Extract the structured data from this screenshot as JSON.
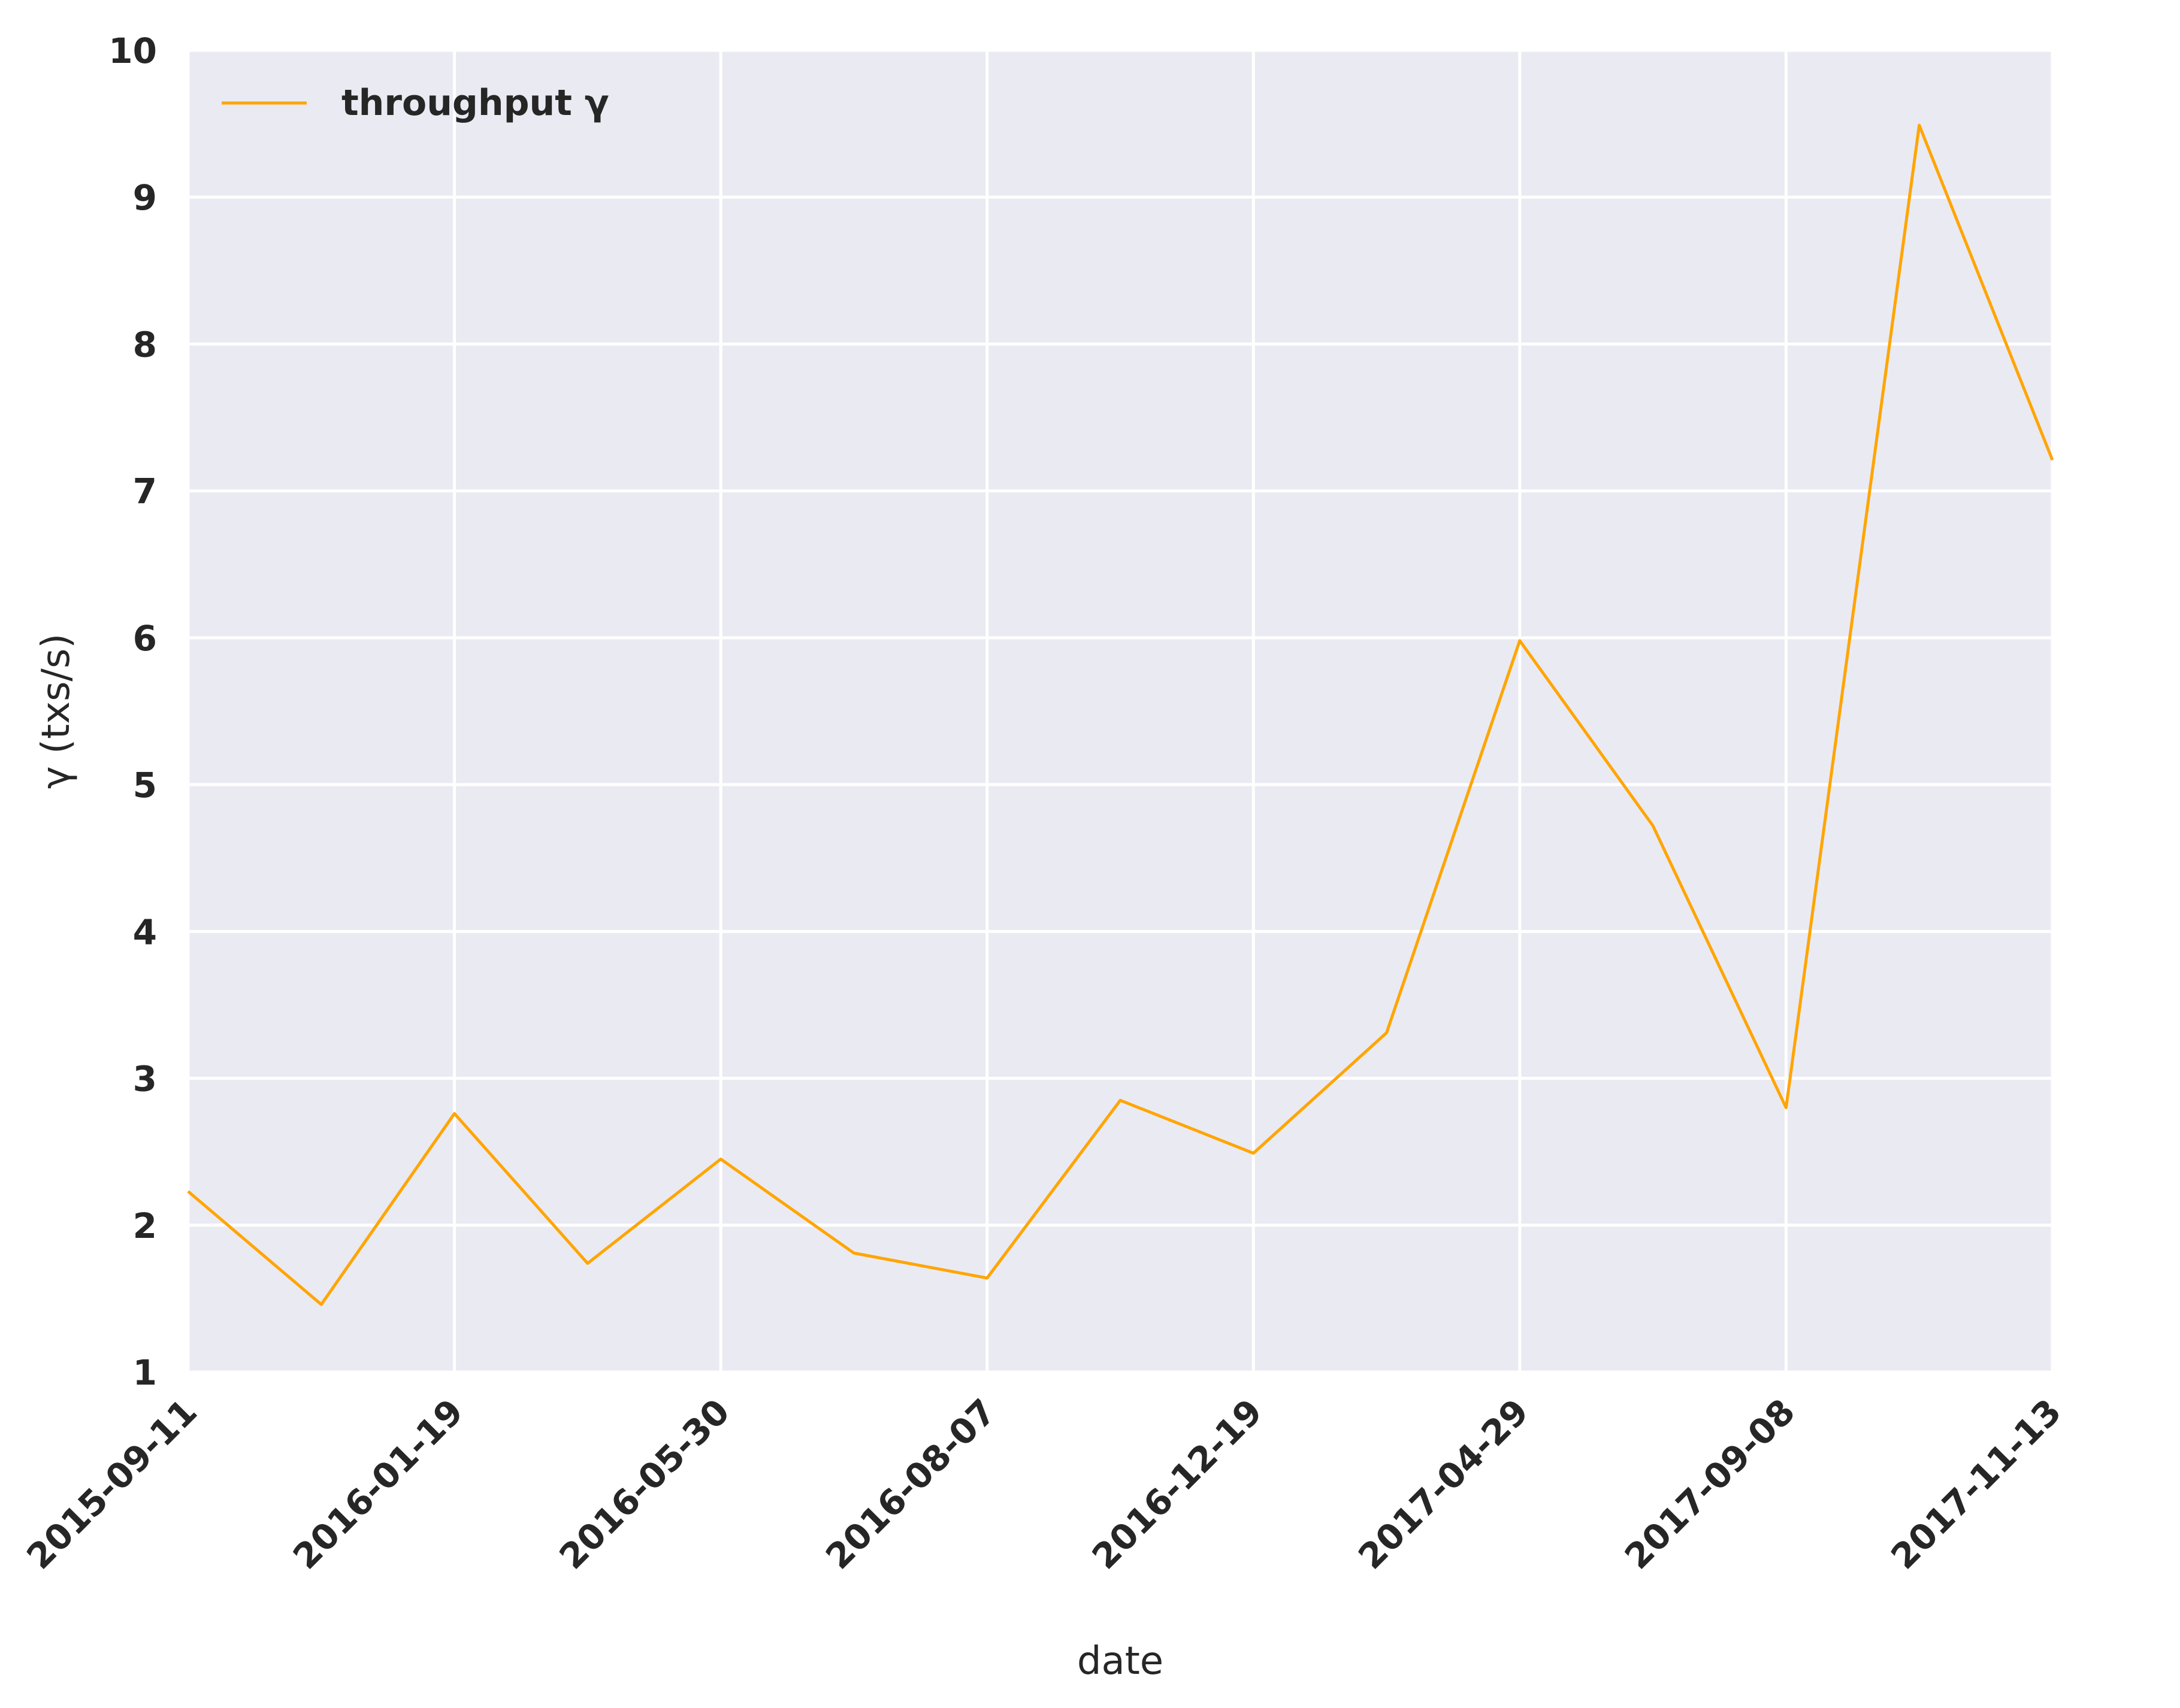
{
  "chart_data": {
    "type": "line",
    "xlabel": "date",
    "ylabel": "γ (txs/s)",
    "ylim": [
      1,
      10
    ],
    "yticks": [
      1,
      2,
      3,
      4,
      5,
      6,
      7,
      8,
      9,
      10
    ],
    "x_tick_labels": [
      "2015-09-11",
      "2016-01-19",
      "2016-05-30",
      "2016-08-07",
      "2016-12-19",
      "2017-04-29",
      "2017-09-08",
      "2017-11-13"
    ],
    "grid": true,
    "legend_position": "top-left",
    "line_color": "#ffa500",
    "plot_background": "#eaeaf2",
    "series": [
      {
        "name": "throughput γ",
        "values": [
          2.23,
          1.46,
          2.76,
          1.74,
          2.45,
          1.81,
          1.64,
          2.85,
          2.49,
          3.31,
          5.98,
          4.72,
          2.8,
          9.49,
          7.21
        ]
      }
    ]
  }
}
